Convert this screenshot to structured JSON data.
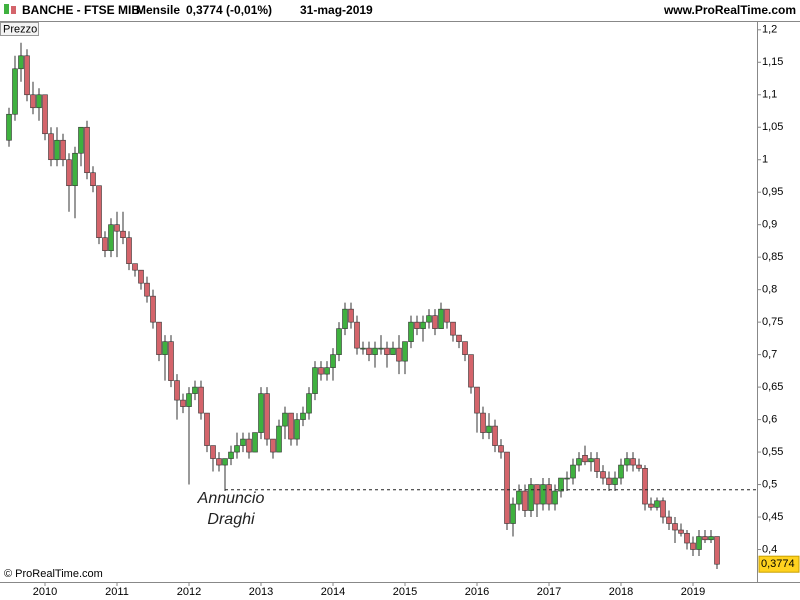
{
  "chart_data": {
    "type": "candlestick",
    "title": "BANCHE - FTSE MIB",
    "period": "Mensile",
    "quote": "0,3774 (-0,01%)",
    "date": "31-mag-2019",
    "site": "www.ProRealTime.com",
    "panel_label": "Prezzo",
    "copyright": "© ProRealTime.com",
    "annotation": [
      "Annuncio",
      "Draghi"
    ],
    "reference_line": 0.492,
    "last_price": {
      "value": 0.3774,
      "label": "0,3774"
    },
    "up_color": "#3fb13f",
    "down_color": "#d4646b",
    "ylim": [
      0.35,
      1.212
    ],
    "yticks": [
      {
        "value": 0.4,
        "label": "0,4"
      },
      {
        "value": 0.45,
        "label": "0,45"
      },
      {
        "value": 0.5,
        "label": "0,5"
      },
      {
        "value": 0.55,
        "label": "0,55"
      },
      {
        "value": 0.6,
        "label": "0,6"
      },
      {
        "value": 0.65,
        "label": "0,65"
      },
      {
        "value": 0.7,
        "label": "0,7"
      },
      {
        "value": 0.75,
        "label": "0,75"
      },
      {
        "value": 0.8,
        "label": "0,8"
      },
      {
        "value": 0.85,
        "label": "0,85"
      },
      {
        "value": 0.9,
        "label": "0,9"
      },
      {
        "value": 0.95,
        "label": "0,95"
      },
      1,
      {
        "value": 1.05,
        "label": "1,05"
      },
      {
        "value": 1.1,
        "label": "1,1"
      },
      {
        "value": 1.15,
        "label": "1,15"
      },
      {
        "value": 1.2,
        "label": "1,2"
      }
    ],
    "categories": [
      null,
      null,
      null,
      null,
      null,
      null,
      "2010",
      null,
      null,
      null,
      null,
      null,
      null,
      null,
      null,
      null,
      null,
      null,
      "2011",
      null,
      null,
      null,
      null,
      null,
      null,
      null,
      null,
      null,
      null,
      null,
      "2012",
      null,
      null,
      null,
      null,
      null,
      null,
      null,
      null,
      null,
      null,
      null,
      "2013",
      null,
      null,
      null,
      null,
      null,
      null,
      null,
      null,
      null,
      null,
      null,
      "2014",
      null,
      null,
      null,
      null,
      null,
      null,
      null,
      null,
      null,
      null,
      null,
      "2015",
      null,
      null,
      null,
      null,
      null,
      null,
      null,
      null,
      null,
      null,
      null,
      "2016",
      null,
      null,
      null,
      null,
      null,
      null,
      null,
      null,
      null,
      null,
      null,
      "2017",
      null,
      null,
      null,
      null,
      null,
      null,
      null,
      null,
      null,
      null,
      null,
      "2018",
      null,
      null,
      null,
      null,
      null,
      null,
      null,
      null,
      null,
      null,
      null,
      "2019",
      null,
      null,
      null,
      null
    ],
    "open": [
      1.03,
      1.07,
      1.14,
      1.16,
      1.1,
      1.08,
      1.1,
      1.04,
      1.0,
      1.03,
      1.0,
      0.96,
      1.01,
      1.05,
      0.98,
      0.96,
      0.88,
      0.86,
      0.9,
      0.89,
      0.88,
      0.84,
      0.83,
      0.81,
      0.79,
      0.75,
      0.7,
      0.72,
      0.66,
      0.63,
      0.62,
      0.64,
      0.65,
      0.61,
      0.56,
      0.54,
      0.53,
      0.54,
      0.55,
      0.56,
      0.57,
      0.55,
      0.58,
      0.64,
      0.57,
      0.55,
      0.59,
      0.61,
      0.57,
      0.6,
      0.61,
      0.64,
      0.68,
      0.67,
      0.68,
      0.7,
      0.74,
      0.77,
      0.75,
      0.71,
      0.71,
      0.7,
      0.71,
      0.71,
      0.7,
      0.71,
      0.69,
      0.72,
      0.75,
      0.74,
      0.75,
      0.76,
      0.74,
      0.77,
      0.75,
      0.73,
      0.72,
      0.7,
      0.65,
      0.61,
      0.58,
      0.59,
      0.56,
      0.55,
      0.44,
      0.47,
      0.49,
      0.46,
      0.5,
      0.47,
      0.5,
      0.47,
      0.49,
      0.51,
      0.51,
      0.53,
      0.545,
      0.535,
      0.54,
      0.52,
      0.51,
      0.5,
      0.51,
      0.53,
      0.54,
      0.53,
      0.525,
      0.47,
      0.465,
      0.475,
      0.45,
      0.44,
      0.43,
      0.425,
      0.41,
      0.4,
      0.42,
      0.415,
      0.42
    ],
    "high": [
      1.08,
      1.16,
      1.18,
      1.17,
      1.12,
      1.11,
      1.1,
      1.05,
      1.05,
      1.04,
      1.01,
      1.02,
      1.05,
      1.06,
      0.99,
      0.96,
      0.89,
      0.91,
      0.92,
      0.92,
      0.89,
      0.84,
      0.83,
      0.82,
      0.8,
      0.75,
      0.73,
      0.73,
      0.67,
      0.64,
      0.65,
      0.66,
      0.66,
      0.61,
      0.56,
      0.55,
      0.54,
      0.56,
      0.58,
      0.58,
      0.58,
      0.58,
      0.65,
      0.65,
      0.57,
      0.6,
      0.62,
      0.61,
      0.61,
      0.62,
      0.65,
      0.69,
      0.69,
      0.69,
      0.71,
      0.75,
      0.78,
      0.78,
      0.76,
      0.72,
      0.72,
      0.72,
      0.73,
      0.72,
      0.72,
      0.73,
      0.72,
      0.76,
      0.76,
      0.76,
      0.77,
      0.77,
      0.78,
      0.77,
      0.75,
      0.73,
      0.72,
      0.7,
      0.65,
      0.62,
      0.61,
      0.6,
      0.57,
      0.55,
      0.48,
      0.5,
      0.5,
      0.51,
      0.5,
      0.51,
      0.51,
      0.5,
      0.51,
      0.52,
      0.54,
      0.55,
      0.56,
      0.55,
      0.55,
      0.53,
      0.52,
      0.52,
      0.54,
      0.55,
      0.55,
      0.54,
      0.53,
      0.48,
      0.48,
      0.48,
      0.46,
      0.45,
      0.44,
      0.43,
      0.42,
      0.43,
      0.43,
      0.43,
      0.42
    ],
    "low": [
      1.02,
      1.06,
      1.12,
      1.09,
      1.07,
      1.06,
      1.03,
      0.99,
      0.99,
      0.99,
      0.92,
      0.91,
      0.99,
      0.97,
      0.95,
      0.87,
      0.85,
      0.85,
      0.85,
      0.87,
      0.83,
      0.82,
      0.8,
      0.78,
      0.74,
      0.69,
      0.66,
      0.65,
      0.6,
      0.61,
      0.5,
      0.63,
      0.6,
      0.55,
      0.52,
      0.52,
      0.49,
      0.53,
      0.54,
      0.55,
      0.54,
      0.55,
      0.57,
      0.56,
      0.54,
      0.55,
      0.57,
      0.56,
      0.56,
      0.59,
      0.6,
      0.63,
      0.66,
      0.66,
      0.66,
      0.69,
      0.73,
      0.74,
      0.7,
      0.7,
      0.69,
      0.68,
      0.7,
      0.68,
      0.7,
      0.67,
      0.67,
      0.71,
      0.73,
      0.72,
      0.74,
      0.73,
      0.74,
      0.74,
      0.72,
      0.71,
      0.69,
      0.64,
      0.58,
      0.57,
      0.57,
      0.55,
      0.54,
      0.43,
      0.42,
      0.46,
      0.45,
      0.45,
      0.45,
      0.46,
      0.46,
      0.46,
      0.48,
      0.49,
      0.5,
      0.52,
      0.53,
      0.52,
      0.51,
      0.5,
      0.49,
      0.49,
      0.5,
      0.52,
      0.52,
      0.52,
      0.46,
      0.46,
      0.46,
      0.44,
      0.43,
      0.41,
      0.42,
      0.4,
      0.39,
      0.39,
      0.41,
      0.41,
      0.37
    ],
    "close": [
      1.07,
      1.14,
      1.16,
      1.1,
      1.08,
      1.1,
      1.04,
      1.0,
      1.03,
      1.0,
      0.96,
      1.01,
      1.05,
      0.98,
      0.96,
      0.88,
      0.86,
      0.9,
      0.89,
      0.88,
      0.84,
      0.83,
      0.81,
      0.79,
      0.75,
      0.7,
      0.72,
      0.66,
      0.63,
      0.62,
      0.64,
      0.65,
      0.61,
      0.56,
      0.54,
      0.53,
      0.54,
      0.55,
      0.56,
      0.57,
      0.55,
      0.58,
      0.64,
      0.57,
      0.55,
      0.59,
      0.61,
      0.57,
      0.6,
      0.61,
      0.64,
      0.68,
      0.67,
      0.68,
      0.7,
      0.74,
      0.77,
      0.75,
      0.71,
      0.71,
      0.7,
      0.71,
      0.71,
      0.7,
      0.71,
      0.69,
      0.72,
      0.75,
      0.74,
      0.75,
      0.76,
      0.74,
      0.77,
      0.75,
      0.73,
      0.72,
      0.7,
      0.65,
      0.61,
      0.58,
      0.59,
      0.56,
      0.55,
      0.44,
      0.47,
      0.49,
      0.46,
      0.5,
      0.47,
      0.5,
      0.47,
      0.49,
      0.51,
      0.51,
      0.53,
      0.54,
      0.535,
      0.54,
      0.52,
      0.51,
      0.5,
      0.51,
      0.53,
      0.54,
      0.53,
      0.525,
      0.47,
      0.465,
      0.475,
      0.45,
      0.44,
      0.43,
      0.425,
      0.41,
      0.4,
      0.42,
      0.415,
      0.42,
      0.3774
    ]
  }
}
